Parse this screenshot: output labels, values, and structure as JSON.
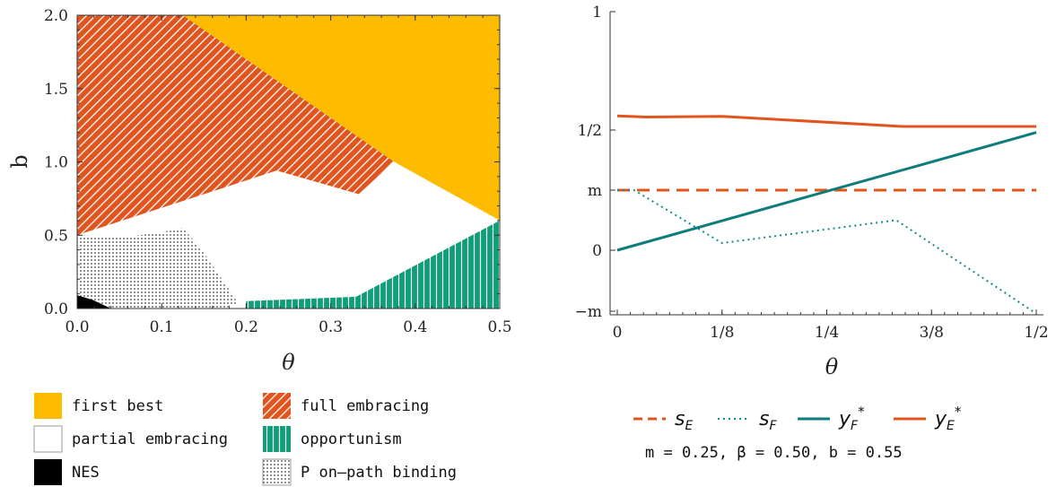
{
  "chart_data": [
    {
      "type": "area",
      "xlabel": "θ",
      "ylabel": "b",
      "xlim": [
        0,
        0.5
      ],
      "ylim": [
        0,
        2.0
      ],
      "xticks": [
        "0.0",
        "0.1",
        "0.2",
        "0.3",
        "0.4",
        "0.5"
      ],
      "yticks": [
        "0.0",
        "0.5",
        "1.0",
        "1.5",
        "2.0"
      ],
      "regions": [
        {
          "name": "first best",
          "color": "#FDBB00",
          "pattern": "solid",
          "polygon": [
            [
              0.125,
              2.0
            ],
            [
              0.5,
              2.0
            ],
            [
              0.5,
              0.6
            ],
            [
              0.375,
              1.0
            ]
          ]
        },
        {
          "name": "full embracing",
          "color": "#E0541E",
          "pattern": "hatch",
          "polygon": [
            [
              0.0,
              2.0
            ],
            [
              0.125,
              2.0
            ],
            [
              0.375,
              1.0
            ],
            [
              0.333,
              0.78
            ],
            [
              0.236,
              0.94
            ],
            [
              0.0,
              0.5
            ]
          ]
        },
        {
          "name": "partial embracing",
          "color": "#ffffff",
          "pattern": "solid",
          "polygon": [
            [
              0.0,
              0.5
            ],
            [
              0.236,
              0.94
            ],
            [
              0.333,
              0.78
            ],
            [
              0.375,
              1.0
            ],
            [
              0.5,
              0.6
            ],
            [
              0.33,
              0.07
            ],
            [
              0.19,
              0.03
            ],
            [
              0.12,
              0.55
            ],
            [
              0.0,
              0.5
            ]
          ]
        },
        {
          "name": "opportunism",
          "color": "#0E9E78",
          "pattern": "vlines",
          "polygon": [
            [
              0.2,
              0.05
            ],
            [
              0.33,
              0.08
            ],
            [
              0.5,
              0.6
            ],
            [
              0.5,
              0.0
            ],
            [
              0.2,
              0.0
            ]
          ]
        },
        {
          "name": "P on-path binding",
          "color": "#555555",
          "pattern": "dots",
          "polygon": [
            [
              0.0,
              0.5
            ],
            [
              0.06,
              0.49
            ],
            [
              0.1,
              0.52
            ],
            [
              0.125,
              0.55
            ],
            [
              0.15,
              0.38
            ],
            [
              0.19,
              0.04
            ],
            [
              0.175,
              0.0
            ],
            [
              0.04,
              0.0
            ],
            [
              0.0,
              0.08
            ]
          ]
        },
        {
          "name": "NES",
          "color": "#000000",
          "pattern": "solid",
          "polygon": [
            [
              0.0,
              0.09
            ],
            [
              0.018,
              0.06
            ],
            [
              0.04,
              0.0
            ],
            [
              0.0,
              0.0
            ]
          ]
        }
      ],
      "legend": [
        {
          "label": "first best",
          "key": "first best"
        },
        {
          "label": "full embracing",
          "key": "full embracing"
        },
        {
          "label": "partial embracing",
          "key": "partial embracing"
        },
        {
          "label": "opportunism",
          "key": "opportunism"
        },
        {
          "label": "NES",
          "key": "NES"
        },
        {
          "label": "P on–path binding",
          "key": "P on-path binding"
        }
      ]
    },
    {
      "type": "line",
      "xlabel": "θ",
      "ylabel": "",
      "xlim": [
        0,
        0.5
      ],
      "ylim": [
        -0.25,
        1.0
      ],
      "xticks": [
        {
          "value": 0,
          "label": "0"
        },
        {
          "value": 0.125,
          "label": "1/8"
        },
        {
          "value": 0.25,
          "label": "1/4"
        },
        {
          "value": 0.375,
          "label": "3/8"
        },
        {
          "value": 0.5,
          "label": "1/2"
        }
      ],
      "yticks": [
        {
          "value": -0.25,
          "label": "−m"
        },
        {
          "value": 0,
          "label": "0"
        },
        {
          "value": 0.25,
          "label": "m"
        },
        {
          "value": 0.5,
          "label": "1/2"
        },
        {
          "value": 1.0,
          "label": "1"
        }
      ],
      "series": [
        {
          "name": "s_E",
          "color": "#E0541E",
          "dash": "dashed",
          "points": [
            [
              0,
              0.25
            ],
            [
              0.5,
              0.25
            ]
          ]
        },
        {
          "name": "s_F",
          "color": "#138D8B",
          "dash": "dotted",
          "points": [
            [
              0,
              0.25
            ],
            [
              0.02,
              0.25
            ],
            [
              0.125,
              0.03
            ],
            [
              0.333,
              0.125
            ],
            [
              0.5,
              -0.26
            ]
          ]
        },
        {
          "name": "y_F*",
          "color": "#0E7C7B",
          "dash": "solid",
          "points": [
            [
              0,
              0.0
            ],
            [
              0.5,
              0.49
            ],
            [
              0.5,
              0.49
            ]
          ]
        },
        {
          "name": "y_E*",
          "color": "#E0541E",
          "dash": "solid",
          "points": [
            [
              0,
              0.56
            ],
            [
              0.035,
              0.555
            ],
            [
              0.125,
              0.558
            ],
            [
              0.34,
              0.515
            ],
            [
              0.5,
              0.515
            ]
          ]
        }
      ],
      "legend": [
        {
          "sym": "s",
          "sub": "E",
          "sup": ""
        },
        {
          "sym": "s",
          "sub": "F",
          "sup": ""
        },
        {
          "sym": "y",
          "sub": "F",
          "sup": "*"
        },
        {
          "sym": "y",
          "sub": "E",
          "sup": "*"
        }
      ],
      "params_text": "m = 0.25,  β = 0.50,  b = 0.55"
    }
  ]
}
